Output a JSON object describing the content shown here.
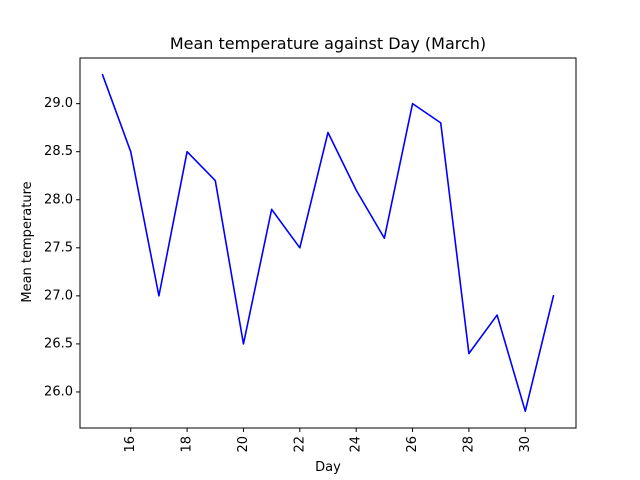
{
  "chart_data": {
    "type": "line",
    "title": "Mean temperature against Day (March)",
    "xlabel": "Day",
    "ylabel": "Mean temperature",
    "x": [
      15,
      16,
      17,
      18,
      19,
      20,
      21,
      22,
      23,
      24,
      25,
      26,
      27,
      28,
      29,
      30,
      31
    ],
    "series": [
      {
        "values": [
          29.3,
          28.5,
          27.0,
          28.5,
          28.2,
          26.5,
          27.9,
          27.5,
          28.7,
          28.1,
          27.6,
          29.0,
          28.8,
          26.4,
          26.8,
          25.8,
          27.0
        ],
        "color": "#0000ff"
      }
    ],
    "xlim": [
      14.2,
      31.8
    ],
    "ylim": [
      25.625,
      29.475
    ],
    "xticks": [
      16,
      18,
      20,
      22,
      24,
      26,
      28,
      30
    ],
    "xtick_labels": [
      "16",
      "18",
      "20",
      "22",
      "24",
      "26",
      "28",
      "30"
    ],
    "xtick_rotation_deg": 90,
    "yticks": [
      26.0,
      26.5,
      27.0,
      27.5,
      28.0,
      28.5,
      29.0
    ],
    "ytick_labels": [
      "26.0",
      "26.5",
      "27.0",
      "27.5",
      "28.0",
      "28.5",
      "29.0"
    ],
    "grid": false,
    "legend": "none"
  }
}
